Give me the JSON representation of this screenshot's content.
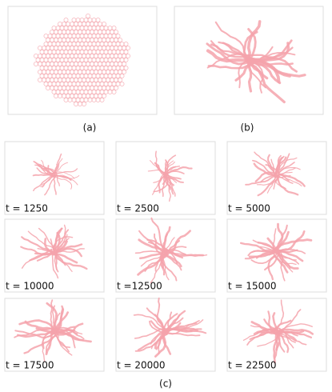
{
  "panels": {
    "a": {
      "label": "(a)"
    },
    "b": {
      "label": "(b)"
    }
  },
  "grid": {
    "label": "(c)",
    "frames": [
      {
        "label": "t = 1250"
      },
      {
        "label": "t = 2500"
      },
      {
        "label": "t = 5000"
      },
      {
        "label": "t = 10000"
      },
      {
        "label": "t =12500"
      },
      {
        "label": "t = 15000"
      },
      {
        "label": "t = 17500"
      },
      {
        "label": "t = 20000"
      },
      {
        "label": "t = 22500"
      }
    ]
  }
}
